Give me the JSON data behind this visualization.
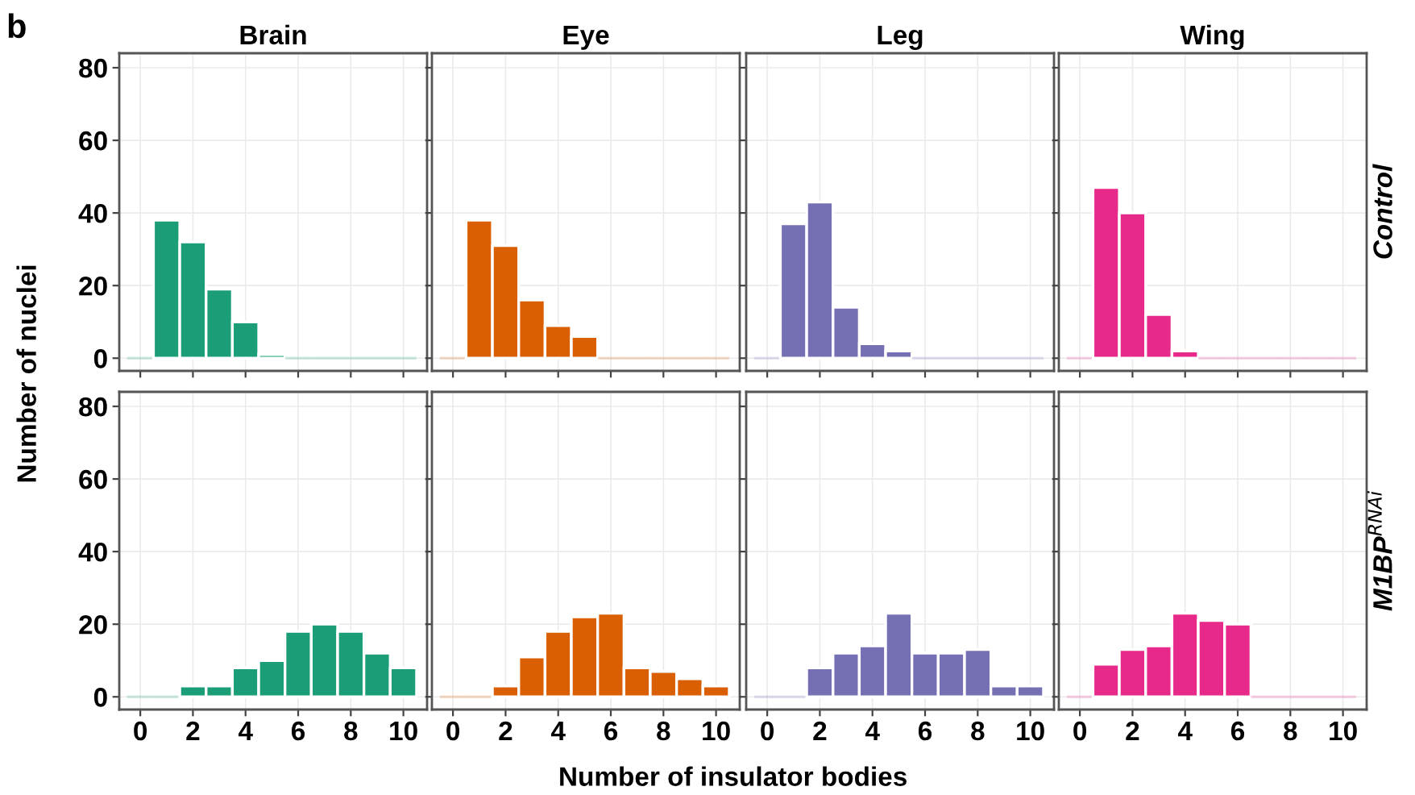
{
  "chart_data": [
    {
      "type": "histogram",
      "title": "Brain",
      "ylabel": "Number of nuclei",
      "annotations": [
        "b"
      ],
      "bins": [
        -0.5,
        0.5,
        1.5,
        2.5,
        3.5,
        4.5,
        5.5,
        6.5,
        7.5,
        8.5,
        9.5,
        10.5
      ],
      "values": [
        0,
        38,
        32,
        19,
        10,
        1,
        0,
        0,
        0,
        0,
        0
      ],
      "color": "#1b9e77",
      "xlim": [
        -0.8,
        10.9
      ],
      "ylim": [
        -3.5,
        84
      ],
      "xticks": [
        0,
        2,
        4,
        6,
        8,
        10
      ],
      "yticks": [
        0,
        20,
        40,
        60,
        80
      ],
      "grid": true,
      "tick_labels": "y"
    },
    {
      "type": "histogram",
      "title": "Eye",
      "bins": [
        -0.5,
        0.5,
        1.5,
        2.5,
        3.5,
        4.5,
        5.5,
        6.5,
        7.5,
        8.5,
        9.5,
        10.5
      ],
      "values": [
        0,
        38,
        31,
        16,
        9,
        6,
        0,
        0,
        0,
        0,
        0
      ],
      "color": "#d95f02",
      "xlim": [
        -0.8,
        10.9
      ],
      "ylim": [
        -3.5,
        84
      ],
      "xticks": [
        0,
        2,
        4,
        6,
        8,
        10
      ],
      "yticks": [
        0,
        20,
        40,
        60,
        80
      ],
      "grid": true,
      "tick_labels": false
    },
    {
      "type": "histogram",
      "title": "Leg",
      "bins": [
        -0.5,
        0.5,
        1.5,
        2.5,
        3.5,
        4.5,
        5.5,
        6.5,
        7.5,
        8.5,
        9.5,
        10.5
      ],
      "values": [
        0,
        37,
        43,
        14,
        4,
        2,
        0,
        0,
        0,
        0,
        0
      ],
      "color": "#7570b3",
      "xlim": [
        -0.8,
        10.9
      ],
      "ylim": [
        -3.5,
        84
      ],
      "xticks": [
        0,
        2,
        4,
        6,
        8,
        10
      ],
      "yticks": [
        0,
        20,
        40,
        60,
        80
      ],
      "grid": true,
      "tick_labels": false
    },
    {
      "type": "histogram",
      "title": "Wing",
      "annotations": [
        "Control"
      ],
      "bins": [
        -0.5,
        0.5,
        1.5,
        2.5,
        3.5,
        4.5,
        5.5,
        6.5,
        7.5,
        8.5,
        9.5,
        10.5
      ],
      "values": [
        0,
        47,
        40,
        12,
        2,
        0,
        0,
        0,
        0,
        0,
        0
      ],
      "color": "#e7298a",
      "xlim": [
        -0.8,
        10.9
      ],
      "ylim": [
        -3.5,
        84
      ],
      "xticks": [
        0,
        2,
        4,
        6,
        8,
        10
      ],
      "yticks": [
        0,
        20,
        40,
        60,
        80
      ],
      "grid": true,
      "tick_labels": false
    },
    {
      "type": "histogram",
      "bins": [
        -0.5,
        0.5,
        1.5,
        2.5,
        3.5,
        4.5,
        5.5,
        6.5,
        7.5,
        8.5,
        9.5,
        10.5
      ],
      "values": [
        0,
        0,
        3,
        3,
        8,
        10,
        18,
        20,
        18,
        12,
        8
      ],
      "color": "#1b9e77",
      "xlim": [
        -0.8,
        10.9
      ],
      "ylim": [
        -3.5,
        84
      ],
      "xticks": [
        0,
        2,
        4,
        6,
        8,
        10
      ],
      "yticks": [
        0,
        20,
        40,
        60,
        80
      ],
      "grid": true
    },
    {
      "type": "histogram",
      "xlabel": "Number of insulator bodies",
      "bins": [
        -0.5,
        0.5,
        1.5,
        2.5,
        3.5,
        4.5,
        5.5,
        6.5,
        7.5,
        8.5,
        9.5,
        10.5
      ],
      "values": [
        0,
        0,
        3,
        11,
        18,
        22,
        23,
        8,
        7,
        5,
        3
      ],
      "color": "#d95f02",
      "xlim": [
        -0.8,
        10.9
      ],
      "ylim": [
        -3.5,
        84
      ],
      "xticks": [
        0,
        2,
        4,
        6,
        8,
        10
      ],
      "yticks": [
        0,
        20,
        40,
        60,
        80
      ],
      "grid": true,
      "tick_labels": "x"
    },
    {
      "type": "histogram",
      "bins": [
        -0.5,
        0.5,
        1.5,
        2.5,
        3.5,
        4.5,
        5.5,
        6.5,
        7.5,
        8.5,
        9.5,
        10.5
      ],
      "values": [
        0,
        0,
        8,
        12,
        14,
        23,
        12,
        12,
        13,
        3,
        3
      ],
      "color": "#7570b3",
      "xlim": [
        -0.8,
        10.9
      ],
      "ylim": [
        -3.5,
        84
      ],
      "xticks": [
        0,
        2,
        4,
        6,
        8,
        10
      ],
      "yticks": [
        0,
        20,
        40,
        60,
        80
      ],
      "grid": true,
      "tick_labels": "x"
    },
    {
      "type": "histogram",
      "annotations": [
        "M1BP$^{RNAi}$"
      ],
      "bins": [
        -0.5,
        0.5,
        1.5,
        2.5,
        3.5,
        4.5,
        5.5,
        6.5,
        7.5,
        8.5,
        9.5,
        10.5
      ],
      "values": [
        0,
        9,
        13,
        14,
        23,
        21,
        20,
        0,
        0,
        0,
        0
      ],
      "color": "#e7298a",
      "xlim": [
        -0.8,
        10.9
      ],
      "ylim": [
        -3.5,
        84
      ],
      "xticks": [
        0,
        2,
        4,
        6,
        8,
        10
      ],
      "yticks": [
        0,
        20,
        40,
        60,
        80
      ],
      "grid": true,
      "tick_labels": "x"
    }
  ]
}
